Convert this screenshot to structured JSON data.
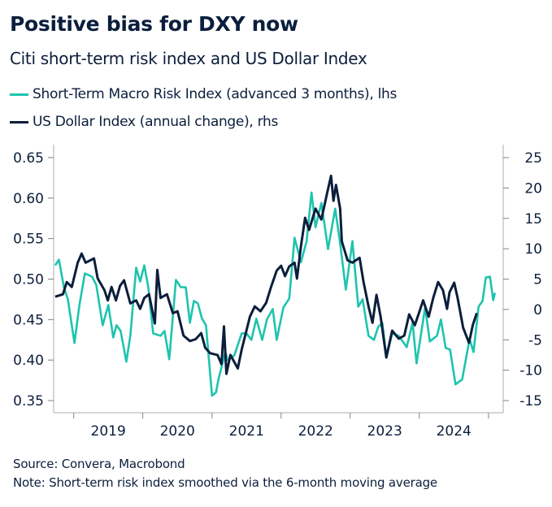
{
  "header": {
    "title": "Positive bias for DXY now",
    "subtitle": "Citi short-term risk index and US Dollar Index"
  },
  "source": "Source: Convera, Macrobond",
  "note": "Note: Short-term risk index smoothed via the 6-month moving average",
  "chart_data": {
    "type": "line",
    "title": "Positive bias for DXY now",
    "subtitle": "Citi short-term risk index and US Dollar Index",
    "x_range": [
      "2018-09-17",
      "2025-03-20"
    ],
    "x_ticks": [
      "2019",
      "2020",
      "2021",
      "2022",
      "2023",
      "2024"
    ],
    "y_left": {
      "range": [
        0.35,
        0.65
      ],
      "ticks": [
        "0.35",
        "0.40",
        "0.45",
        "0.50",
        "0.55",
        "0.60",
        "0.65"
      ]
    },
    "y_right": {
      "range": [
        -15,
        25
      ],
      "ticks": [
        "-15",
        "-10",
        "-5",
        "0",
        "5",
        "10",
        "15",
        "20",
        "25"
      ]
    },
    "grid": false,
    "legend_position": "top-left",
    "series": [
      {
        "name": "Short-Term Macro Risk Index (advanced 3 months), lhs",
        "axis": "left",
        "color": "#1ec4ae",
        "points": [
          [
            "2018-09-25",
            0.517
          ],
          [
            "2018-10-15",
            0.524
          ],
          [
            "2018-11-10",
            0.49
          ],
          [
            "2018-12-01",
            0.475
          ],
          [
            "2019-01-05",
            0.421
          ],
          [
            "2019-01-30",
            0.466
          ],
          [
            "2019-03-01",
            0.507
          ],
          [
            "2019-04-08",
            0.503
          ],
          [
            "2019-04-30",
            0.493
          ],
          [
            "2019-06-03",
            0.443
          ],
          [
            "2019-07-03",
            0.468
          ],
          [
            "2019-07-29",
            0.428
          ],
          [
            "2019-08-15",
            0.443
          ],
          [
            "2019-09-06",
            0.436
          ],
          [
            "2019-10-06",
            0.398
          ],
          [
            "2019-10-27",
            0.43
          ],
          [
            "2019-11-27",
            0.514
          ],
          [
            "2019-12-18",
            0.497
          ],
          [
            "2020-01-09",
            0.517
          ],
          [
            "2020-01-30",
            0.49
          ],
          [
            "2020-02-25",
            0.433
          ],
          [
            "2020-04-04",
            0.43
          ],
          [
            "2020-04-25",
            0.436
          ],
          [
            "2020-05-20",
            0.401
          ],
          [
            "2020-06-24",
            0.499
          ],
          [
            "2020-07-20",
            0.49
          ],
          [
            "2020-08-15",
            0.49
          ],
          [
            "2020-09-06",
            0.446
          ],
          [
            "2020-09-27",
            0.473
          ],
          [
            "2020-10-18",
            0.47
          ],
          [
            "2020-11-09",
            0.451
          ],
          [
            "2020-11-30",
            0.443
          ],
          [
            "2021-01-01",
            0.356
          ],
          [
            "2021-01-22",
            0.36
          ],
          [
            "2021-02-04",
            0.376
          ],
          [
            "2021-03-12",
            0.41
          ],
          [
            "2021-03-25",
            0.4
          ],
          [
            "2021-04-29",
            0.406
          ],
          [
            "2021-06-07",
            0.433
          ],
          [
            "2021-07-02",
            0.433
          ],
          [
            "2021-07-28",
            0.425
          ],
          [
            "2021-08-23",
            0.451
          ],
          [
            "2021-09-23",
            0.425
          ],
          [
            "2021-10-18",
            0.45
          ],
          [
            "2021-11-18",
            0.463
          ],
          [
            "2021-12-09",
            0.425
          ],
          [
            "2022-01-13",
            0.465
          ],
          [
            "2022-02-13",
            0.476
          ],
          [
            "2022-03-13",
            0.551
          ],
          [
            "2022-04-16",
            0.521
          ],
          [
            "2022-05-16",
            0.547
          ],
          [
            "2022-06-11",
            0.607
          ],
          [
            "2022-07-02",
            0.564
          ],
          [
            "2022-08-02",
            0.594
          ],
          [
            "2022-09-06",
            0.537
          ],
          [
            "2022-10-14",
            0.587
          ],
          [
            "2022-11-09",
            0.544
          ],
          [
            "2022-12-09",
            0.487
          ],
          [
            "2023-01-13",
            0.547
          ],
          [
            "2023-02-13",
            0.466
          ],
          [
            "2023-03-08",
            0.475
          ],
          [
            "2023-04-08",
            0.43
          ],
          [
            "2023-05-07",
            0.425
          ],
          [
            "2023-05-29",
            0.441
          ],
          [
            "2023-06-20",
            0.446
          ],
          [
            "2023-07-11",
            0.403
          ],
          [
            "2023-08-11",
            0.433
          ],
          [
            "2023-09-15",
            0.43
          ],
          [
            "2023-10-27",
            0.416
          ],
          [
            "2023-11-27",
            0.446
          ],
          [
            "2023-12-18",
            0.396
          ],
          [
            "2024-02-01",
            0.465
          ],
          [
            "2024-02-26",
            0.423
          ],
          [
            "2024-04-04",
            0.43
          ],
          [
            "2024-04-25",
            0.45
          ],
          [
            "2024-05-20",
            0.415
          ],
          [
            "2024-06-12",
            0.413
          ],
          [
            "2024-07-11",
            0.37
          ],
          [
            "2024-08-15",
            0.376
          ],
          [
            "2024-09-23",
            0.426
          ],
          [
            "2024-10-14",
            0.41
          ],
          [
            "2024-11-10",
            0.466
          ],
          [
            "2024-12-01",
            0.473
          ],
          [
            "2024-12-18",
            0.502
          ],
          [
            "2025-01-09",
            0.503
          ],
          [
            "2025-01-26",
            0.474
          ],
          [
            "2025-02-04",
            0.483
          ]
        ]
      },
      {
        "name": "US Dollar Index (annual change), rhs",
        "axis": "right",
        "color": "#0b1e3c",
        "points": [
          [
            "2018-09-25",
            2.1
          ],
          [
            "2018-11-05",
            2.5
          ],
          [
            "2018-11-25",
            4.5
          ],
          [
            "2018-12-22",
            3.7
          ],
          [
            "2019-01-22",
            7.7
          ],
          [
            "2019-02-12",
            9.2
          ],
          [
            "2019-03-05",
            7.7
          ],
          [
            "2019-04-18",
            8.4
          ],
          [
            "2019-05-08",
            5.1
          ],
          [
            "2019-06-12",
            3.2
          ],
          [
            "2019-06-30",
            1.5
          ],
          [
            "2019-07-20",
            3.7
          ],
          [
            "2019-08-12",
            1.5
          ],
          [
            "2019-09-03",
            3.9
          ],
          [
            "2019-09-24",
            4.8
          ],
          [
            "2019-10-27",
            1.0
          ],
          [
            "2019-11-27",
            1.5
          ],
          [
            "2019-12-18",
            0.1
          ],
          [
            "2020-01-09",
            1.9
          ],
          [
            "2020-02-03",
            2.5
          ],
          [
            "2020-03-05",
            -2.3
          ],
          [
            "2020-03-18",
            6.5
          ],
          [
            "2020-04-04",
            1.9
          ],
          [
            "2020-05-08",
            2.5
          ],
          [
            "2020-06-08",
            -0.6
          ],
          [
            "2020-07-03",
            -0.3
          ],
          [
            "2020-08-03",
            -4.3
          ],
          [
            "2020-09-06",
            -5.2
          ],
          [
            "2020-10-06",
            -4.9
          ],
          [
            "2020-11-05",
            -3.9
          ],
          [
            "2020-11-26",
            -6.3
          ],
          [
            "2020-12-22",
            -7.2
          ],
          [
            "2021-01-30",
            -7.5
          ],
          [
            "2021-02-20",
            -9.0
          ],
          [
            "2021-03-05",
            -2.8
          ],
          [
            "2021-03-18",
            -10.6
          ],
          [
            "2021-04-08",
            -7.5
          ],
          [
            "2021-05-17",
            -9.7
          ],
          [
            "2021-06-07",
            -6.6
          ],
          [
            "2021-07-20",
            -1.2
          ],
          [
            "2021-08-15",
            0.5
          ],
          [
            "2021-09-14",
            -0.3
          ],
          [
            "2021-10-14",
            1.1
          ],
          [
            "2021-11-09",
            3.7
          ],
          [
            "2021-12-09",
            6.4
          ],
          [
            "2022-01-01",
            7.2
          ],
          [
            "2022-01-22",
            5.5
          ],
          [
            "2022-02-13",
            7.1
          ],
          [
            "2022-03-13",
            7.7
          ],
          [
            "2022-03-26",
            5.1
          ],
          [
            "2022-04-16",
            10.4
          ],
          [
            "2022-05-08",
            15.1
          ],
          [
            "2022-05-29",
            13.1
          ],
          [
            "2022-07-02",
            16.6
          ],
          [
            "2022-08-02",
            14.8
          ],
          [
            "2022-09-01",
            19.1
          ],
          [
            "2022-09-22",
            22.0
          ],
          [
            "2022-10-05",
            17.9
          ],
          [
            "2022-10-18",
            20.5
          ],
          [
            "2022-11-09",
            16.6
          ],
          [
            "2022-11-18",
            11.2
          ],
          [
            "2022-12-18",
            8.1
          ],
          [
            "2023-01-13",
            7.7
          ],
          [
            "2023-02-20",
            8.5
          ],
          [
            "2023-03-13",
            4.5
          ],
          [
            "2023-04-08",
            0.5
          ],
          [
            "2023-04-29",
            -2.2
          ],
          [
            "2023-05-20",
            2.4
          ],
          [
            "2023-06-11",
            -1.2
          ],
          [
            "2023-07-11",
            -7.9
          ],
          [
            "2023-08-11",
            -3.5
          ],
          [
            "2023-09-15",
            -4.8
          ],
          [
            "2023-10-14",
            -4.3
          ],
          [
            "2023-11-09",
            -0.8
          ],
          [
            "2023-12-09",
            -2.6
          ],
          [
            "2024-01-22",
            1.5
          ],
          [
            "2024-02-20",
            -1.2
          ],
          [
            "2024-03-15",
            1.9
          ],
          [
            "2024-04-10",
            4.5
          ],
          [
            "2024-05-05",
            3.2
          ],
          [
            "2024-05-27",
            0.1
          ],
          [
            "2024-06-09",
            2.8
          ],
          [
            "2024-07-04",
            4.4
          ],
          [
            "2024-07-22",
            1.9
          ],
          [
            "2024-08-20",
            -3.0
          ],
          [
            "2024-09-20",
            -5.5
          ],
          [
            "2024-10-10",
            -2.6
          ],
          [
            "2024-10-31",
            -0.6
          ]
        ]
      }
    ]
  }
}
